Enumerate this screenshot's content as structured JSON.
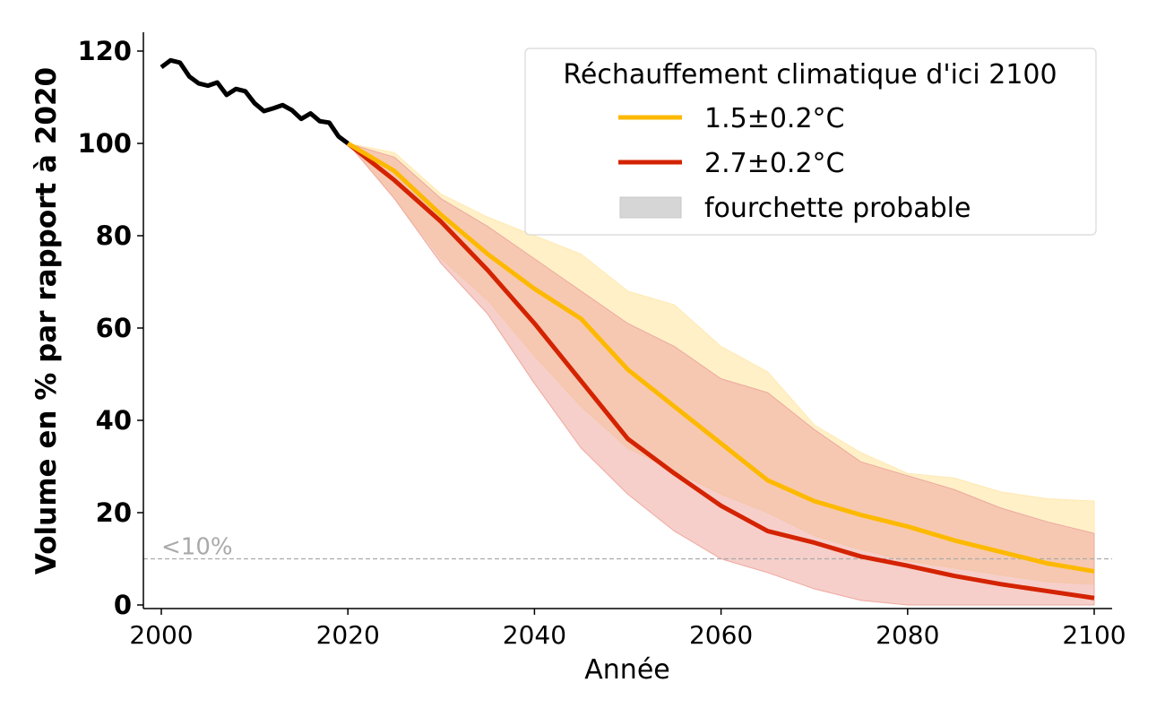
{
  "chart_data": {
    "type": "line",
    "title": "",
    "xlabel": "Année",
    "ylabel": "Volume en % par rapport à 2020",
    "xlim": [
      1998,
      2102
    ],
    "ylim": [
      -0.8,
      124
    ],
    "xticks": [
      2000,
      2020,
      2040,
      2060,
      2080,
      2100
    ],
    "yticks": [
      0,
      20,
      40,
      60,
      80,
      100,
      120
    ],
    "grid": false,
    "legend": {
      "title": "Réchauffement climatique d'ici 2100",
      "placement": "top-right",
      "entries": [
        "1.5±0.2°C",
        "2.7±0.2°C",
        "fourchette probable"
      ]
    },
    "threshold": {
      "value": 10,
      "label": "<10%",
      "color": "#aaaaaa"
    },
    "historical": {
      "color": "#000000",
      "x": [
        2000,
        2001,
        2002,
        2003,
        2004,
        2005,
        2006,
        2007,
        2008,
        2009,
        2010,
        2011,
        2012,
        2013,
        2014,
        2015,
        2016,
        2017,
        2018,
        2019,
        2020
      ],
      "y": [
        116.5,
        118,
        117.5,
        114.5,
        113,
        112.5,
        113.2,
        110.5,
        111.8,
        111.3,
        108.7,
        107,
        107.6,
        108.3,
        107.2,
        105.3,
        106.5,
        104.8,
        104.5,
        101.5,
        100
      ]
    },
    "series": [
      {
        "name": "1.5±0.2°C",
        "color": "#fdb900",
        "band_color": "#ffe9b0",
        "x": [
          2020,
          2025,
          2030,
          2035,
          2040,
          2045,
          2050,
          2055,
          2060,
          2065,
          2070,
          2075,
          2080,
          2085,
          2090,
          2095,
          2100
        ],
        "y": [
          100,
          94,
          84.5,
          76,
          68.5,
          62,
          51,
          43,
          35,
          27,
          22.5,
          19.5,
          17,
          14,
          11.5,
          9,
          7.3
        ],
        "upper": [
          100,
          98,
          89,
          84,
          80,
          76,
          68,
          65,
          56,
          50.5,
          39,
          33,
          28.5,
          27.5,
          24.5,
          23,
          22.5
        ],
        "lower": [
          100,
          88,
          75,
          66,
          54,
          43,
          34,
          29,
          24,
          20,
          15,
          12,
          9.5,
          8,
          6.5,
          5,
          4.5
        ]
      },
      {
        "name": "2.7±0.2°C",
        "color": "#d42300",
        "band_color": "#eea89e",
        "x": [
          2020,
          2025,
          2030,
          2035,
          2040,
          2045,
          2050,
          2055,
          2060,
          2065,
          2070,
          2075,
          2080,
          2085,
          2090,
          2095,
          2100
        ],
        "y": [
          100,
          92,
          83,
          72.5,
          61,
          48.5,
          36,
          28.5,
          21.5,
          16,
          13.5,
          10.5,
          8.5,
          6.3,
          4.5,
          3,
          1.5
        ],
        "upper": [
          100,
          97,
          88,
          82,
          75,
          68,
          61,
          56,
          49,
          46,
          38,
          31,
          28,
          25,
          21,
          18,
          15.5
        ],
        "lower": [
          100,
          88,
          74,
          63,
          48,
          34,
          24,
          16,
          10,
          7,
          3.5,
          1,
          0,
          0,
          0,
          0,
          0
        ]
      }
    ]
  }
}
